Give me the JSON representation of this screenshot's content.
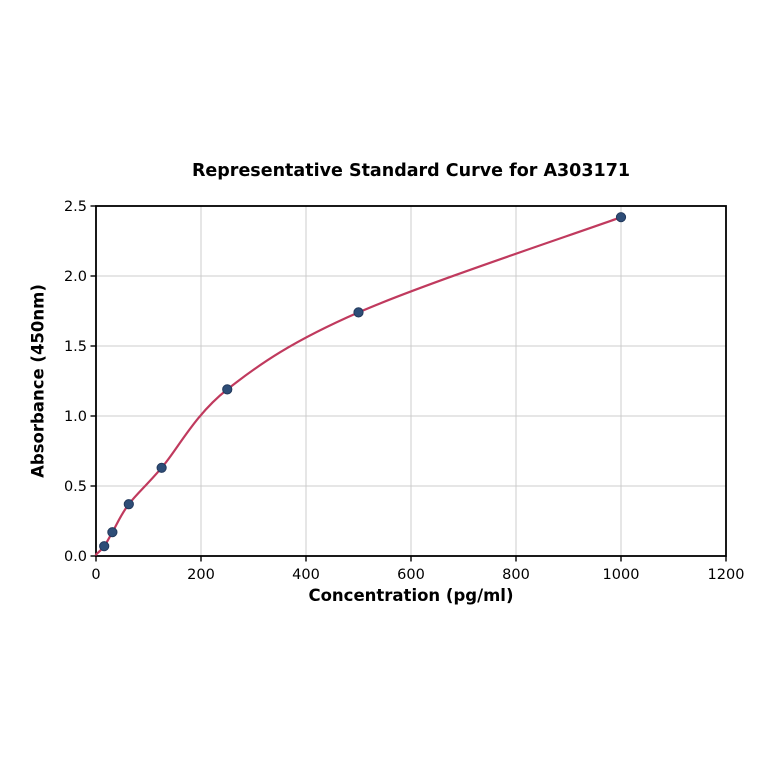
{
  "chart_data": {
    "type": "scatter",
    "title": "Representative Standard Curve for A303171",
    "xlabel": "Concentration (pg/ml)",
    "ylabel": "Absorbance (450nm)",
    "xlim": [
      0,
      1200
    ],
    "ylim": [
      0,
      2.5
    ],
    "xticks": [
      "0",
      "200",
      "400",
      "600",
      "800",
      "1000",
      "1200"
    ],
    "yticks": [
      "0.0",
      "0.5",
      "1.0",
      "1.5",
      "2.0",
      "2.5"
    ],
    "grid": true,
    "points": [
      {
        "x": 15.6,
        "y": 0.07
      },
      {
        "x": 31.2,
        "y": 0.17
      },
      {
        "x": 62.5,
        "y": 0.37
      },
      {
        "x": 125,
        "y": 0.63
      },
      {
        "x": 250,
        "y": 1.19
      },
      {
        "x": 500,
        "y": 1.74
      },
      {
        "x": 1000,
        "y": 2.42
      }
    ],
    "fit_curve_start": {
      "x": 0,
      "y": 0.01
    },
    "colors": {
      "curve": "#c03a5e",
      "marker_fill": "#2e4d77",
      "marker_edge": "#22395c",
      "grid": "#cccccc",
      "axis": "#000000",
      "text": "#000000",
      "background": "#ffffff"
    }
  }
}
